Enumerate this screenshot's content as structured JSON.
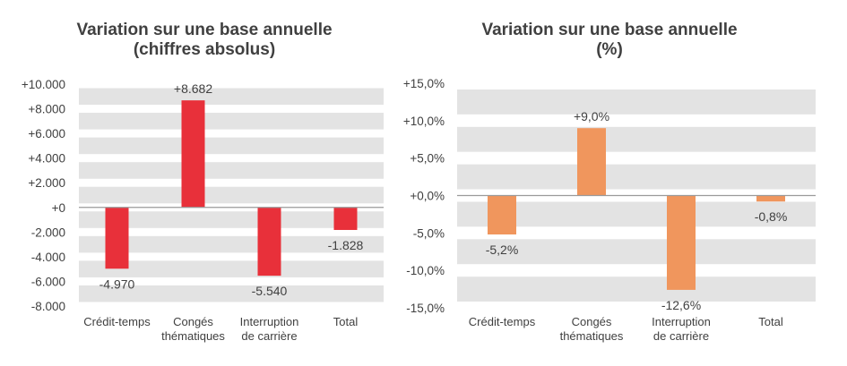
{
  "chart_data": [
    {
      "type": "bar",
      "title": [
        "Variation sur une base annuelle",
        "(chiffres absolus)"
      ],
      "categories": [
        [
          "Crédit-temps"
        ],
        [
          "Congés",
          "thématiques"
        ],
        [
          "Interruption",
          "de carrière"
        ],
        [
          "Total"
        ]
      ],
      "values": [
        -4970,
        8682,
        -5540,
        -1828
      ],
      "data_labels": [
        "-4.970",
        "+8.682",
        "-5.540",
        "-1.828"
      ],
      "ylim": [
        -8000,
        10000
      ],
      "yticks": [
        10000,
        8000,
        6000,
        4000,
        2000,
        0,
        -2000,
        -4000,
        -6000,
        -8000
      ],
      "ytick_labels": [
        "+10.000",
        "+8.000",
        "+6.000",
        "+4.000",
        "+2.000",
        "+0",
        "-2.000",
        "-4.000",
        "-6.000",
        "-8.000"
      ],
      "color": "#e8303a",
      "grid": "banded"
    },
    {
      "type": "bar",
      "title": [
        "Variation sur une base annuelle",
        "(%)"
      ],
      "categories": [
        [
          "Crédit-temps"
        ],
        [
          "Congés",
          "thématiques"
        ],
        [
          "Interruption",
          "de carrière"
        ],
        [
          "Total"
        ]
      ],
      "values": [
        -5.2,
        9.0,
        -12.6,
        -0.8
      ],
      "data_labels": [
        "-5,2%",
        "+9,0%",
        "-12,6%",
        "-0,8%"
      ],
      "ylim": [
        -15,
        15
      ],
      "yticks": [
        15,
        10,
        5,
        0,
        -5,
        -10,
        -15
      ],
      "ytick_labels": [
        "+15,0%",
        "+10,0%",
        "+5,0%",
        "+0,0%",
        "-5,0%",
        "-10,0%",
        "-15,0%"
      ],
      "color": "#f0965d",
      "grid": "banded"
    }
  ]
}
